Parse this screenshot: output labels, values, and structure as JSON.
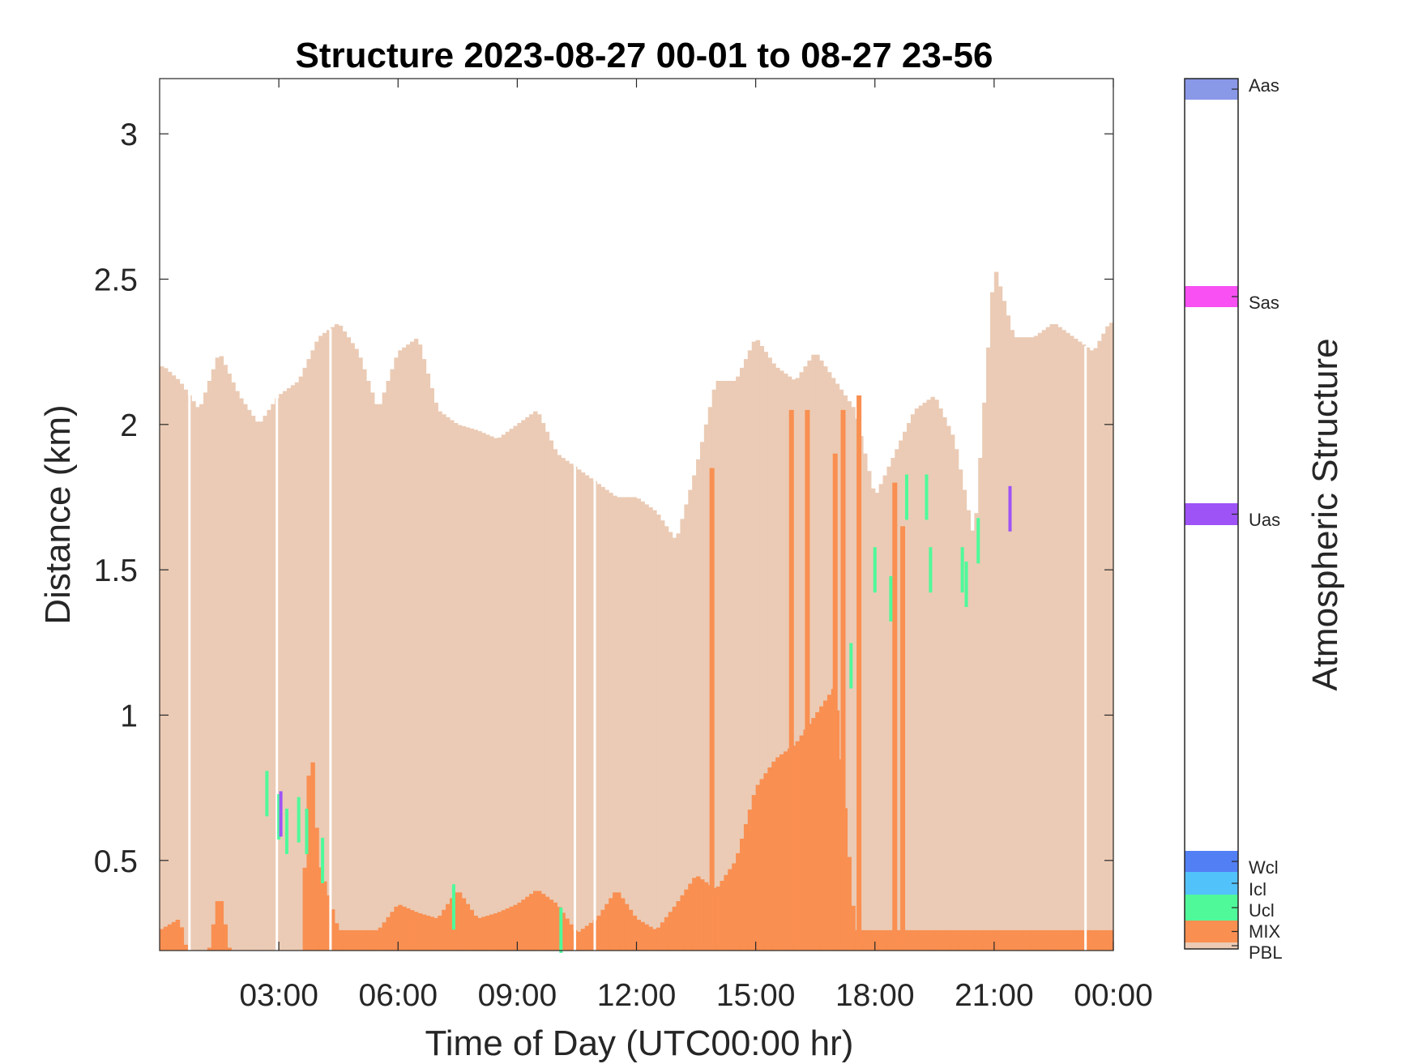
{
  "chart_data": {
    "type": "heatmap",
    "title": "Structure 2023-08-27 00-01 to 08-27 23-56",
    "xlabel": "Time of Day (UTC00:00 hr)",
    "ylabel": "Distance (km)",
    "xlim": [
      0,
      24
    ],
    "ylim": [
      0.19,
      3.19
    ],
    "xticks": [
      3,
      6,
      9,
      12,
      15,
      18,
      21,
      24
    ],
    "xtick_labels": [
      "03:00",
      "06:00",
      "09:00",
      "12:00",
      "15:00",
      "18:00",
      "21:00",
      "00:00"
    ],
    "yticks": [
      0.5,
      1,
      1.5,
      2,
      2.5,
      3
    ],
    "ytick_labels": [
      "0.5",
      "1",
      "1.5",
      "2",
      "2.5",
      "3"
    ],
    "colorbar": {
      "label": "Atmospheric Structure",
      "classes": [
        {
          "name": "PBL",
          "color": "#ebcbb5"
        },
        {
          "name": "MIX",
          "color": "#f98f51"
        },
        {
          "name": "Ucl",
          "color": "#4ff99a"
        },
        {
          "name": "Icl",
          "color": "#52c2fa"
        },
        {
          "name": "Wcl",
          "color": "#537ff5"
        },
        {
          "name": "Uas",
          "color": "#9e53f7"
        },
        {
          "name": "Sas",
          "color": "#f850f3"
        },
        {
          "name": "Aas",
          "color": "#8a98e8"
        }
      ]
    },
    "series": [
      {
        "name": "PBL",
        "x": [
          0.1,
          0.5,
          1,
          1.5,
          2,
          2.5,
          3,
          3.5,
          4,
          4.5,
          5,
          5.5,
          6,
          6.5,
          7,
          7.5,
          8,
          8.5,
          9,
          9.5,
          10,
          10.5,
          11,
          11.5,
          12,
          12.5,
          13,
          13.5,
          14,
          14.5,
          15,
          15.5,
          16,
          16.5,
          17,
          17.5,
          18,
          18.5,
          19,
          19.5,
          20,
          20.5,
          21,
          21.5,
          22,
          22.5,
          23,
          23.5,
          23.9
        ],
        "y": [
          2.2,
          2.15,
          2.05,
          2.25,
          2.1,
          2.0,
          2.1,
          2.15,
          2.3,
          2.35,
          2.25,
          2.05,
          2.25,
          2.3,
          2.05,
          2.0,
          1.98,
          1.95,
          2.0,
          2.05,
          1.9,
          1.85,
          1.8,
          1.75,
          1.75,
          1.7,
          1.6,
          1.85,
          2.15,
          2.15,
          2.3,
          2.2,
          2.15,
          2.25,
          2.15,
          2.05,
          1.75,
          1.9,
          2.05,
          2.1,
          1.95,
          1.6,
          2.55,
          2.3,
          2.3,
          2.35,
          2.3,
          2.25,
          2.35
        ]
      },
      {
        "name": "MIX",
        "x": [
          0,
          0.5,
          1,
          1.5,
          2,
          2.5,
          3,
          3.5,
          3.8,
          4,
          4.5,
          5,
          5.5,
          6,
          6.5,
          7,
          7.5,
          8,
          8.5,
          9,
          9.5,
          10,
          10.5,
          11,
          11.5,
          12,
          12.5,
          13,
          13.5,
          14,
          14.5,
          15,
          15.5,
          16,
          16.5,
          17,
          17.5,
          18,
          18.5,
          19,
          19.5,
          20,
          20.5,
          21,
          21.5,
          22,
          22.5,
          23,
          23.5,
          23.9
        ],
        "y": [
          0.26,
          0.3,
          0,
          0.4,
          0,
          0,
          0,
          0,
          0.95,
          0.5,
          0.26,
          0.26,
          0.26,
          0.35,
          0.32,
          0.3,
          0.4,
          0.3,
          0.32,
          0.35,
          0.4,
          0.35,
          0.25,
          0.3,
          0.4,
          0.3,
          0.26,
          0.35,
          0.45,
          0.4,
          0.5,
          0.75,
          0.85,
          0.9,
          1.0,
          1.1,
          0.26,
          0.26,
          0.26,
          0.26,
          0.26,
          0.26,
          0.26,
          0.26,
          0.26,
          0.26,
          0.26,
          0.26,
          0.26,
          0.26
        ]
      },
      {
        "name": "MIX spikes",
        "x": [
          13.9,
          15.9,
          16.3,
          17.0,
          17.2,
          17.6,
          18.5,
          18.7
        ],
        "y": [
          1.85,
          2.05,
          2.05,
          1.9,
          2.05,
          2.1,
          1.8,
          1.65
        ]
      },
      {
        "name": "Ucl",
        "x": [
          2.7,
          3.0,
          3.2,
          3.5,
          3.7,
          4.1,
          7.4,
          10.1,
          17.4,
          18.0,
          18.4,
          18.8,
          19.3,
          19.4,
          20.2,
          20.3,
          20.6
        ],
        "y": [
          0.73,
          0.65,
          0.6,
          0.64,
          0.6,
          0.5,
          0.34,
          0.26,
          1.17,
          1.5,
          1.4,
          1.75,
          1.75,
          1.5,
          1.5,
          1.45,
          1.6
        ]
      },
      {
        "name": "Uas",
        "x": [
          3.05,
          21.4
        ],
        "y": [
          0.66,
          1.71
        ]
      }
    ]
  }
}
